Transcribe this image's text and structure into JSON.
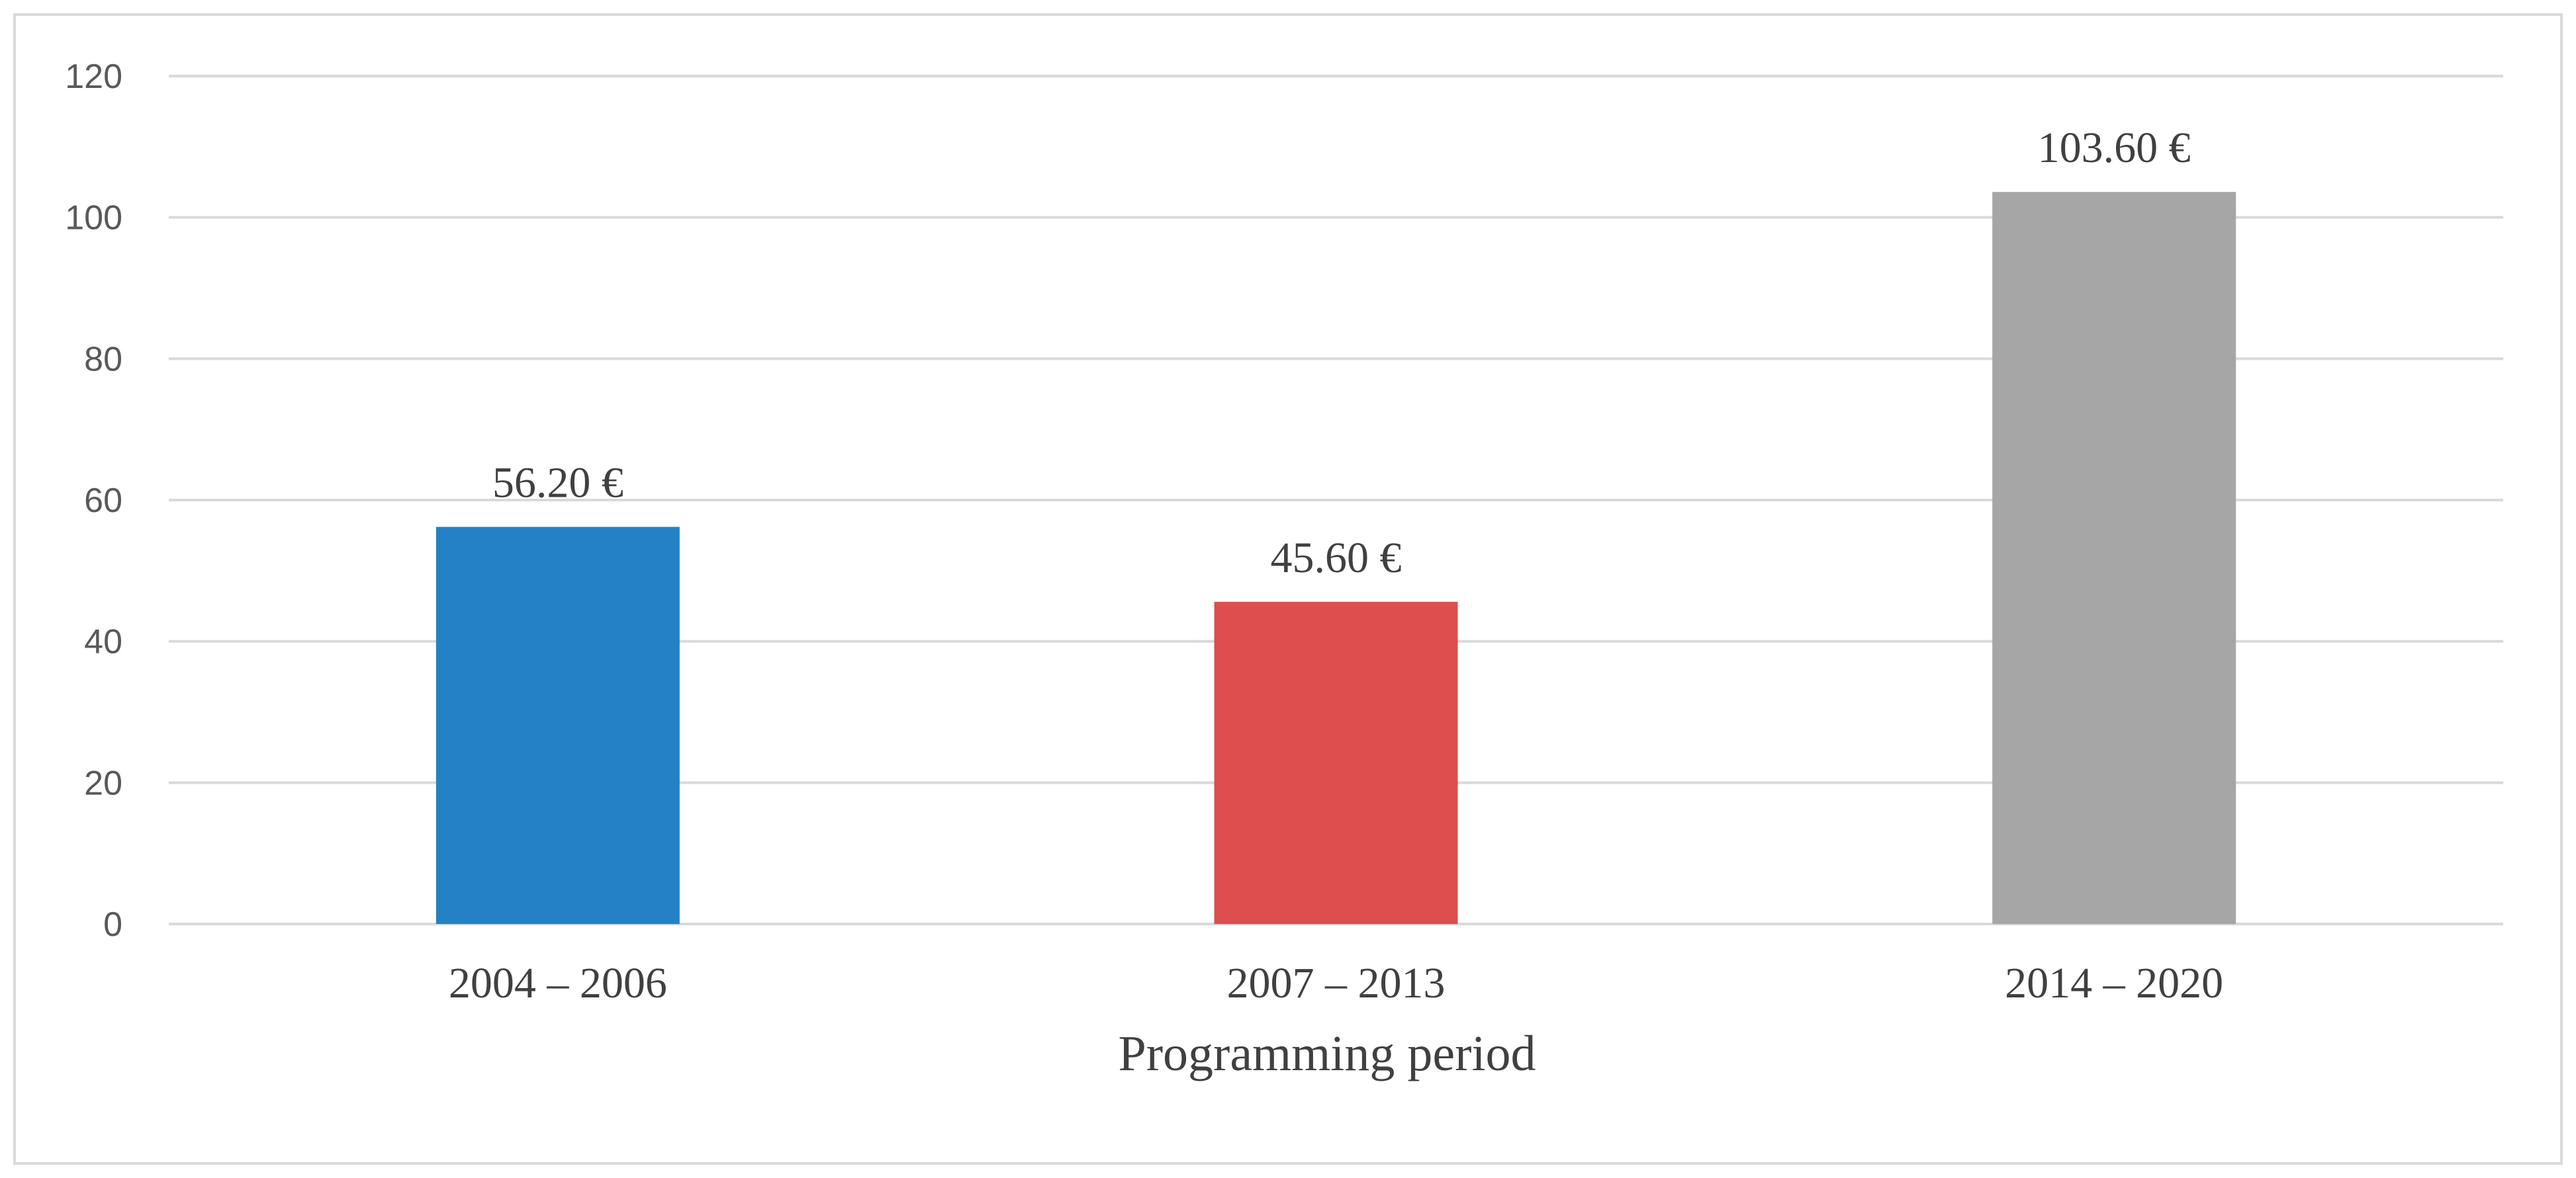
{
  "chart_data": {
    "type": "bar",
    "title": "",
    "xlabel": "Programming period",
    "ylabel": "",
    "categories": [
      "2004 – 2006",
      "2007 – 2013",
      "2014 – 2020"
    ],
    "values": [
      56.2,
      45.6,
      103.6
    ],
    "data_labels": [
      "56.20 €",
      "45.60 €",
      "103.60 €"
    ],
    "colors": [
      "#2481c4",
      "#de4e4e",
      "#a6a6a6"
    ],
    "ylim": [
      0,
      120
    ],
    "yticks": [
      0,
      20,
      40,
      60,
      80,
      100,
      120
    ],
    "grid": true,
    "legend": "none"
  }
}
